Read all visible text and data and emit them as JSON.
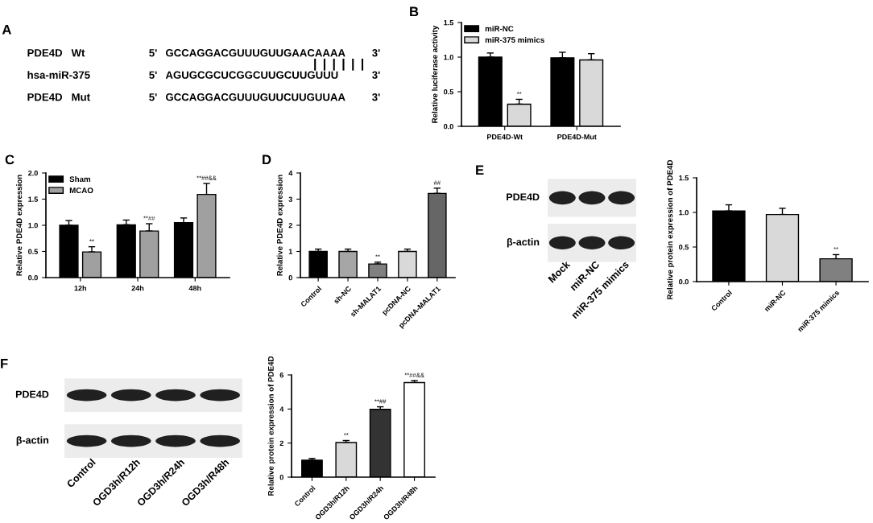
{
  "chart_data": [
    {
      "type": "other",
      "title": "A",
      "annotations": [
        "PDE4D   Wt",
        "5'",
        "GCCAGGACGUUUGUUGAACAAAA",
        "3'",
        "hsa-miR-375",
        "5'",
        "AGUGCGCUCGGCUUGCUUGUUU",
        "3'",
        "PDE4D   Mut",
        "5'",
        "GCCAGGACGUUUGUUCUUGUUAA",
        "3'"
      ]
    },
    {
      "type": "bar",
      "title": "B",
      "ylabel": "Relative luciferase activity",
      "categories": [
        "PDE4D-Wt",
        "PDE4D-Mut"
      ],
      "ylim": [
        0,
        1.5
      ],
      "yticks": [
        {
          "value": 0,
          "label": "0.0"
        },
        {
          "value": 0.5,
          "label": "0.5"
        },
        {
          "value": 1.0,
          "label": "1.0"
        },
        {
          "value": 1.5,
          "label": "1.5"
        }
      ],
      "legend": "top left",
      "series": [
        {
          "name": "miR-NC",
          "color": "#000000",
          "values": [
            1.0,
            0.99
          ],
          "errors": [
            0.06,
            0.08
          ]
        },
        {
          "name": "miR-375 mimics",
          "color": "#d9d9d9",
          "values": [
            0.32,
            0.96
          ],
          "errors": [
            0.07,
            0.09
          ],
          "value_labels": [
            "**",
            null
          ]
        }
      ]
    },
    {
      "type": "bar",
      "title": "C",
      "ylabel": "Relative PDE4D expression",
      "categories": [
        "12h",
        "24h",
        "48h"
      ],
      "ylim": [
        0,
        2.0
      ],
      "yticks": [
        {
          "value": 0,
          "label": "0.0"
        },
        {
          "value": 0.5,
          "label": "0.5"
        },
        {
          "value": 1.0,
          "label": "1.0"
        },
        {
          "value": 1.5,
          "label": "1.5"
        },
        {
          "value": 2.0,
          "label": "2.0"
        }
      ],
      "legend": "top left",
      "series": [
        {
          "name": "Sham",
          "color": "#000000",
          "values": [
            1.0,
            1.01,
            1.05
          ],
          "errors": [
            0.09,
            0.09,
            0.09
          ]
        },
        {
          "name": "MCAO",
          "color": "#a0a0a0",
          "values": [
            0.49,
            0.89,
            1.59
          ],
          "errors": [
            0.1,
            0.14,
            0.21
          ],
          "value_labels": [
            "**",
            "**##",
            "**##&&"
          ]
        }
      ]
    },
    {
      "type": "bar",
      "title": "D",
      "ylabel": "Relative PDE4D expression",
      "categories": [
        "Control",
        "sh-NC",
        "sh-MALAT1",
        "pcDNA-NC",
        "pcDNA-MALAT1"
      ],
      "ylim": [
        0,
        4
      ],
      "yticks": [
        0,
        1,
        2,
        3,
        4
      ],
      "values": [
        1.0,
        1.0,
        0.52,
        1.0,
        3.22
      ],
      "errors": [
        0.09,
        0.09,
        0.07,
        0.09,
        0.2
      ],
      "colors": [
        "#000000",
        "#a6a6a6",
        "#808080",
        "#d9d9d9",
        "#666666"
      ],
      "value_labels": [
        null,
        null,
        "**",
        null,
        "##"
      ]
    },
    {
      "type": "other",
      "title": "E",
      "categories": [
        "Mock",
        "miR-NC",
        "miR-375 mimics"
      ],
      "annotations": [
        "PDE4D",
        "β-actin"
      ]
    },
    {
      "type": "bar",
      "ylabel": "Relative protein expression of PDE4D",
      "categories": [
        "Control",
        "miR-NC",
        "miR-375 mimics"
      ],
      "ylim": [
        0,
        1.5
      ],
      "yticks": [
        {
          "value": 0,
          "label": "0.0"
        },
        {
          "value": 0.5,
          "label": "0.5"
        },
        {
          "value": 1.0,
          "label": "1.0"
        },
        {
          "value": 1.5,
          "label": "1.5"
        }
      ],
      "values": [
        1.02,
        0.97,
        0.33
      ],
      "errors": [
        0.09,
        0.09,
        0.06
      ],
      "colors": [
        "#000000",
        "#d9d9d9",
        "#808080"
      ],
      "value_labels": [
        null,
        null,
        "**"
      ]
    },
    {
      "type": "other",
      "title": "F",
      "categories": [
        "Control",
        "OGD3h/R12h",
        "OGD3h/R24h",
        "OGD3h/R48h"
      ],
      "annotations": [
        "PDE4D",
        "β-actin"
      ]
    },
    {
      "type": "bar",
      "ylabel": "Relative protein expression of PDE4D",
      "categories": [
        "Control",
        "OGD3h/R12h",
        "OGD3h/R24h",
        "OGD3h/R48h"
      ],
      "ylim": [
        0,
        6
      ],
      "yticks": [
        0,
        2,
        4,
        6
      ],
      "values": [
        1.0,
        2.03,
        3.98,
        5.55
      ],
      "errors": [
        0.1,
        0.12,
        0.15,
        0.12
      ],
      "colors": [
        "#000000",
        "#d9d9d9",
        "#333333",
        "#ffffff"
      ],
      "value_labels": [
        null,
        "**",
        "**##",
        "**##&&"
      ]
    }
  ]
}
